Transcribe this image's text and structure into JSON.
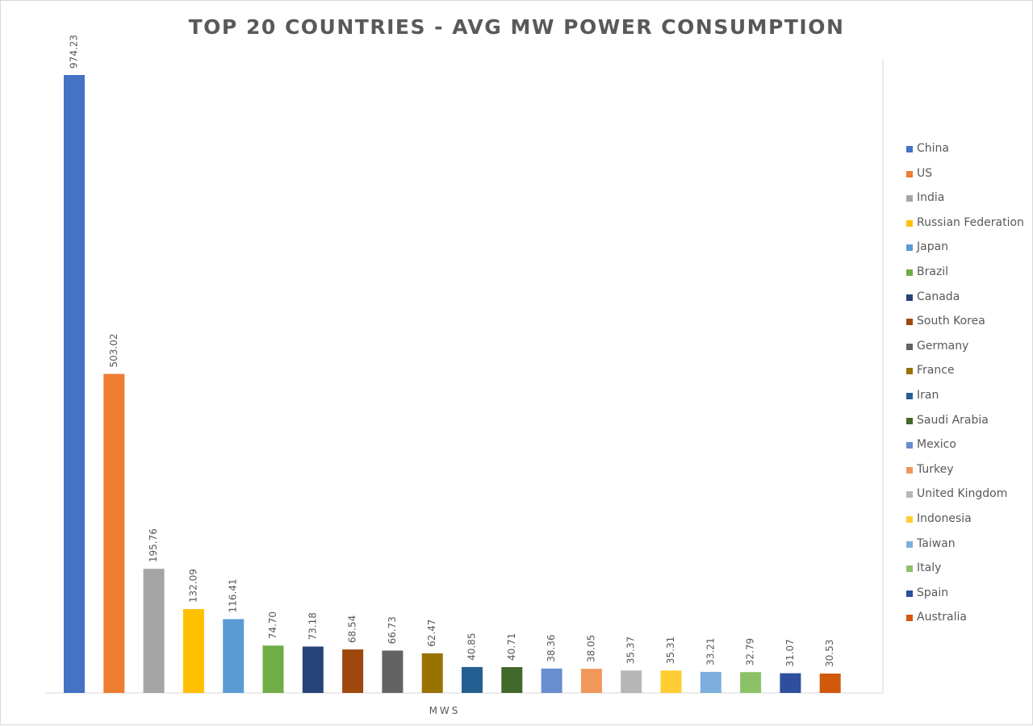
{
  "chart_data": {
    "type": "bar",
    "title": "TOP 20 COUNTRIES - AVG MW POWER CONSUMPTION",
    "xlabel": "MWS",
    "ylabel": "",
    "ylim": [
      0,
      1040
    ],
    "grid": false,
    "legend": "right",
    "categories": [
      "China",
      "US",
      "India",
      "Russian Federation",
      "Japan",
      "Brazil",
      "Canada",
      "South Korea",
      "Germany",
      "France",
      "Iran",
      "Saudi Arabia",
      "Mexico",
      "Turkey",
      "United Kingdom",
      "Indonesia",
      "Taiwan",
      "Italy",
      "Spain",
      "Australia"
    ],
    "values": [
      974.23,
      503.02,
      195.76,
      132.09,
      116.41,
      74.7,
      73.18,
      68.54,
      66.73,
      62.47,
      40.85,
      40.71,
      38.36,
      38.05,
      35.37,
      35.31,
      33.21,
      32.79,
      31.07,
      30.53
    ],
    "value_labels": [
      "974.23",
      "503.02",
      "195.76",
      "132.09",
      "116.41",
      "74.70",
      "73.18",
      "68.54",
      "66.73",
      "62.47",
      "40.85",
      "40.71",
      "38.36",
      "38.05",
      "35.37",
      "35.31",
      "33.21",
      "32.79",
      "31.07",
      "30.53"
    ],
    "colors": [
      "#4472C4",
      "#ED7D31",
      "#A5A5A5",
      "#FFC000",
      "#5B9BD5",
      "#70AD47",
      "#264478",
      "#9E480E",
      "#636363",
      "#997300",
      "#255E91",
      "#43682B",
      "#698ED0",
      "#F1975A",
      "#B7B7B7",
      "#FFCD33",
      "#7CAFDD",
      "#8CC168",
      "#2E4F9B",
      "#D0590C"
    ]
  }
}
